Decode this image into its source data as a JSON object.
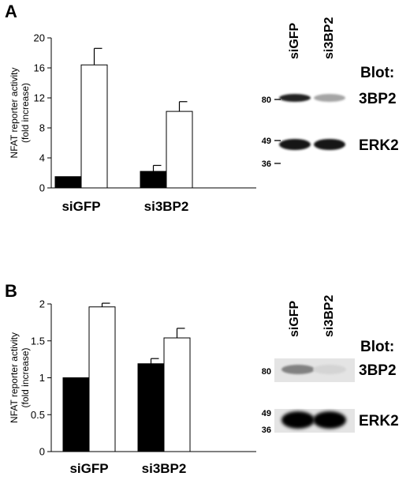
{
  "chart_data": [
    {
      "panel": "A",
      "type": "bar",
      "categories": [
        "siGFP",
        "si3BP2"
      ],
      "series": [
        {
          "color": "#000000",
          "values": [
            1.5,
            2.2
          ],
          "errors": [
            0,
            0.8
          ]
        },
        {
          "color": "#ffffff",
          "values": [
            16.4,
            10.2
          ],
          "errors": [
            2.2,
            1.3
          ]
        }
      ],
      "ylabel": "NFAT reporter activity\n(fold increase)",
      "ylim": [
        0,
        20
      ],
      "yticks": [
        "0",
        "4",
        "8",
        "12",
        "16",
        "20"
      ],
      "blot": {
        "lanes": [
          "siGFP",
          "si3BP2"
        ],
        "header": "Blot:",
        "bands": [
          {
            "label": "3BP2",
            "intensity": [
              0.85,
              0.3
            ]
          },
          {
            "label": "ERK2",
            "intensity": [
              0.9,
              0.9
            ]
          }
        ],
        "markers": [
          "80",
          "49",
          "36"
        ]
      }
    },
    {
      "panel": "B",
      "type": "bar",
      "categories": [
        "siGFP",
        "si3BP2"
      ],
      "series": [
        {
          "color": "#000000",
          "values": [
            1.0,
            1.19
          ],
          "errors": [
            0,
            0.07
          ]
        },
        {
          "color": "#ffffff",
          "values": [
            1.96,
            1.54
          ],
          "errors": [
            0.05,
            0.13
          ]
        }
      ],
      "ylabel": "NFAT reporter activity\n(fold increase)",
      "ylim": [
        0,
        2
      ],
      "yticks": [
        "0",
        "0.5",
        "1",
        "1.5",
        "2"
      ],
      "blot": {
        "lanes": [
          "siGFP",
          "si3BP2"
        ],
        "header": "Blot:",
        "bands": [
          {
            "label": "3BP2",
            "intensity": [
              0.45,
              0.1
            ]
          },
          {
            "label": "ERK2",
            "intensity": [
              1.0,
              1.0
            ]
          }
        ],
        "markers": [
          "80",
          "49",
          "36"
        ]
      }
    }
  ]
}
